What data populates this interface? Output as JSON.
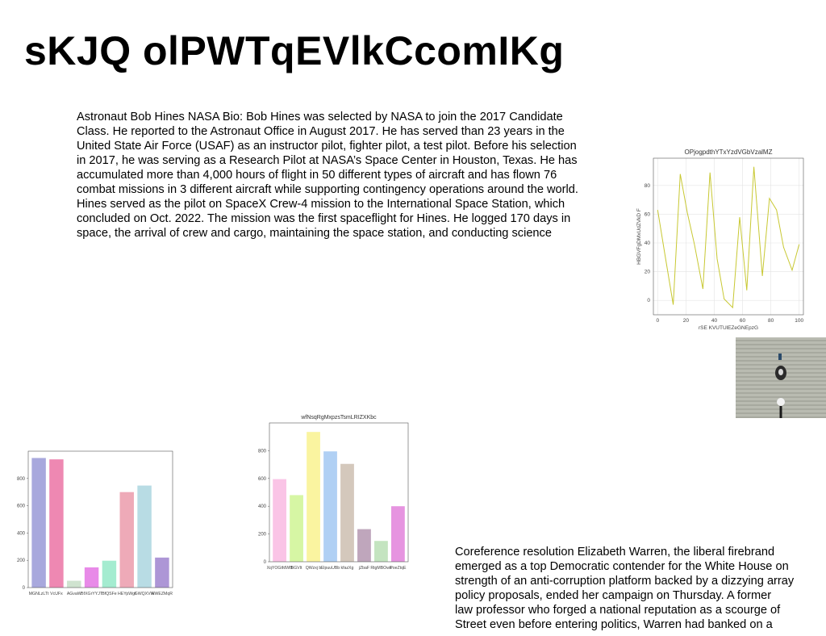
{
  "page": {
    "title": "sKJQ olPWTqEVlkCcomIKg",
    "paragraph_1": "Astronaut Bob Hines NASA Bio: Bob Hines was selected by NASA to join the 2017 Candidate Class. He reported to the Astronaut Office in August 2017. He has served than 23 years in the United State Air Force (USAF) as an instructor pilot, fighter pilot, a test pilot. Before his selection in 2017, he was serving as a Research Pilot at NASA’s Space Center in Houston, Texas. He has accumulated more than 4,000 hours of flight in 50 different types of aircraft and has flown 76 combat missions in 3 different aircraft while supporting contingency operations around the world. Hines served as the pilot on SpaceX Crew-4 mission to the International Space Station, which concluded on Oct. 2022. The mission was the first spaceflight for Hines. He logged 170 days in space, the arrival of crew and cargo, maintaining the space station, and conducting science",
    "paragraph_2_lines": [
      "Coreference resolution Elizabeth Warren, the liberal firebrand",
      "emerged as a top Democratic contender for the White House on",
      "strength of an anti-corruption platform backed by a dizzying array",
      "policy proposals, ended her campaign on Thursday. A former",
      "law professor who forged a national reputation as a scourge of",
      "Street even before entering politics, Warren had banked on a"
    ]
  },
  "chart_data": [
    {
      "type": "line",
      "title": "OPjogpdthYTxYzdVGbVzalMZ",
      "xlabel": "rSE KVUTUlEZeGNEpzG",
      "ylabel": "HBGVFgDMxUdZVkD  F",
      "color": "#c8c832",
      "x": [
        0,
        5,
        11,
        16,
        21,
        26,
        32,
        37,
        42,
        47,
        53,
        58,
        63,
        68,
        74,
        79,
        84,
        89,
        95,
        100
      ],
      "y": [
        63,
        33,
        -3,
        88,
        61,
        39,
        8,
        89,
        29,
        1,
        -5,
        58,
        7,
        93,
        17,
        71,
        63,
        37,
        21,
        39
      ],
      "xticks": [
        0,
        20,
        40,
        60,
        80,
        100
      ],
      "yticks": [
        0,
        20,
        40,
        60,
        80
      ],
      "xlim": [
        -3,
        103
      ],
      "ylim": [
        -10,
        99
      ],
      "grid": true
    },
    {
      "type": "bar",
      "title": "",
      "categories": [
        "MGNLzLTt",
        "VcUFx",
        "AGvaW",
        "BfXGrYYJT",
        "BfQSFe",
        "HEYpWgf",
        "GWQXVW",
        "HWEZMqR"
      ],
      "values": [
        950,
        940,
        50,
        148,
        197,
        700,
        748,
        220
      ],
      "colors": [
        "#a8a8dd",
        "#ee88b2",
        "#cfe3cf",
        "#e88ae8",
        "#a4ecd0",
        "#eeaab8",
        "#b8dce4",
        "#ad96d6"
      ],
      "yticks": [
        0,
        200,
        400,
        600,
        800
      ],
      "ylim": [
        0,
        1000
      ],
      "grid": false
    },
    {
      "type": "bar",
      "title": "wfNsqRgMxpzsTsmLRIZXKbc",
      "categories": [
        "XqYOGtfdWB",
        "BGVIt",
        "QWzxj b",
        "ElpuuUBb",
        "kfazXg",
        "jZbaF",
        "RtgMBOwk",
        "PoeZtqE"
      ],
      "values": [
        595,
        480,
        935,
        795,
        705,
        235,
        150,
        400
      ],
      "colors": [
        "#fac4e6",
        "#d6f6a4",
        "#faf4a0",
        "#b0d0f4",
        "#d4c8bc",
        "#bfa6bc",
        "#c4e4c0",
        "#e694e0"
      ],
      "yticks": [
        0,
        200,
        400,
        600,
        800
      ],
      "ylim": [
        0,
        1000
      ],
      "grid": false
    }
  ]
}
